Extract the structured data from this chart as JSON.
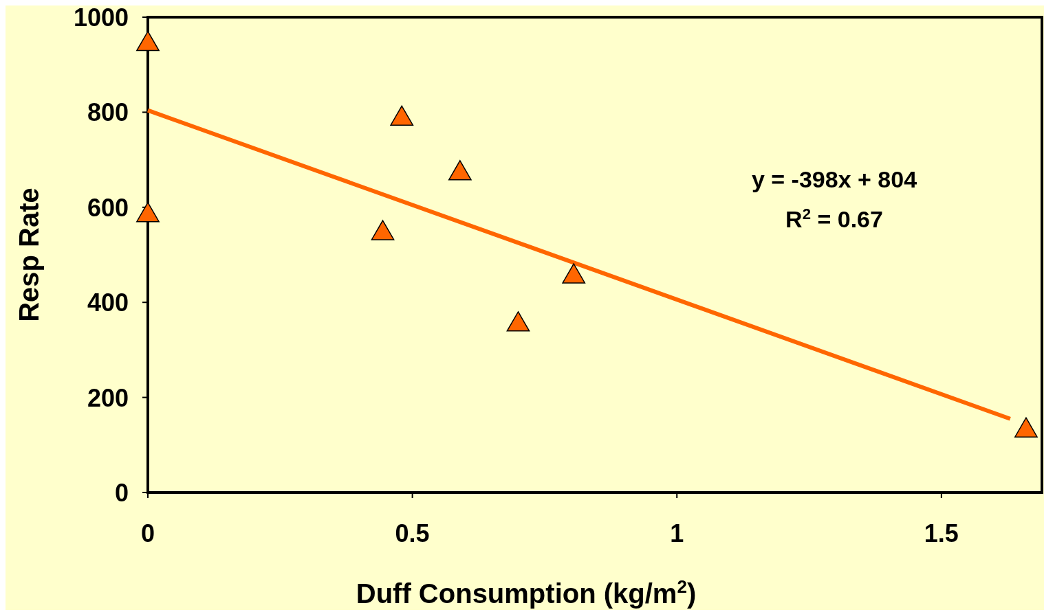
{
  "chart_data": {
    "type": "scatter",
    "xlabel": "Duff Consumption  (kg/m$^{2}$)",
    "ylabel": "Resp Rate",
    "xlim": [
      0,
      1.69
    ],
    "xticks": [
      0,
      0.5,
      1,
      1.5
    ],
    "ylim": [
      0,
      1000
    ],
    "yticks": [
      0,
      200,
      400,
      600,
      800,
      1000
    ],
    "grid": false,
    "marker": "triangle",
    "series": [
      {
        "color": "#ff6600",
        "x": [
          0,
          0,
          0.444,
          0.48,
          0.59,
          0.7,
          0.805,
          1.66
        ],
        "values": [
          950,
          590,
          552,
          793,
          678,
          360,
          461,
          137
        ]
      },
      {
        "type": "line",
        "color": "#ff6600",
        "marker": "none",
        "x": [
          0,
          1.63
        ],
        "values": [
          804,
          155
        ]
      }
    ],
    "annotations": [
      "y = -398x + 804",
      "R$^{2}$ = 0.67"
    ]
  }
}
